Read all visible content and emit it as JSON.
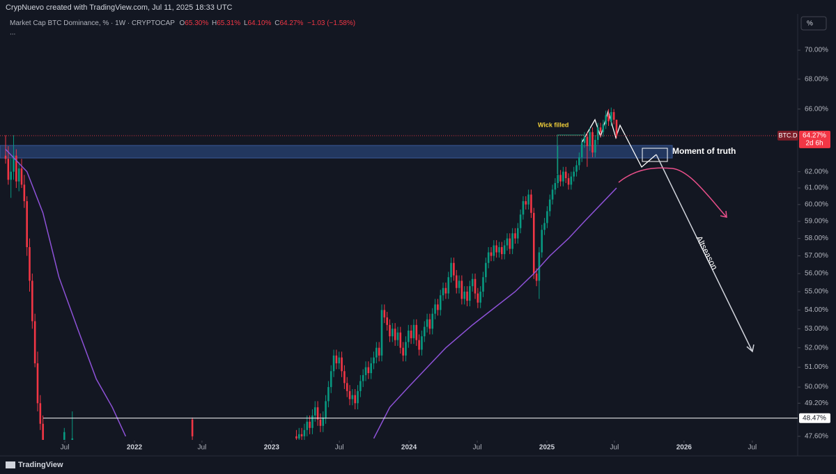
{
  "header": {
    "credit": "CrypNuevo created with TradingView.com, Jul 11, 2025 18:33 UTC",
    "symbol": "Market Cap BTC Dominance, % · 1W · CRYPTOCAP",
    "ohlc": [
      {
        "label": "O",
        "value": "65.30%"
      },
      {
        "label": "H",
        "value": "65.31%"
      },
      {
        "label": "L",
        "value": "64.10%"
      },
      {
        "label": "C",
        "value": "64.27%"
      }
    ],
    "change": "−1.03 (−1.58%)",
    "more": "...",
    "scale_button": "%",
    "logo": "TradingView"
  },
  "chart_data": {
    "type": "candlestick",
    "log": true,
    "grid": false,
    "up_color": "#089981",
    "down_color": "#f23645",
    "ma_color": "#8e52d8",
    "xlim": [
      -2.1,
      296.9
    ],
    "ylim": [
      47.43,
      71.33
    ],
    "xticks": [
      {
        "value": 22.2,
        "label": "Jul"
      },
      {
        "value": 48.3,
        "label": "2022"
      },
      {
        "value": 73.6,
        "label": "Jul"
      },
      {
        "value": 99.7,
        "label": "2023"
      },
      {
        "value": 125.1,
        "label": "Jul"
      },
      {
        "value": 151.2,
        "label": "2024"
      },
      {
        "value": 176.8,
        "label": "Jul"
      },
      {
        "value": 202.9,
        "label": "2025"
      },
      {
        "value": 228.2,
        "label": "Jul"
      },
      {
        "value": 254.3,
        "label": "2026"
      },
      {
        "value": 279.9,
        "label": "Jul"
      }
    ],
    "yticks": [
      {
        "value": 70,
        "label": "70.00%"
      },
      {
        "value": 68,
        "label": "68.00%"
      },
      {
        "value": 66,
        "label": "66.00%"
      },
      {
        "value": 62,
        "label": "62.00%"
      },
      {
        "value": 61,
        "label": "61.00%"
      },
      {
        "value": 60,
        "label": "60.00%"
      },
      {
        "value": 59,
        "label": "59.00%"
      },
      {
        "value": 58,
        "label": "58.00%"
      },
      {
        "value": 57,
        "label": "57.00%"
      },
      {
        "value": 56,
        "label": "56.00%"
      },
      {
        "value": 55,
        "label": "55.00%"
      },
      {
        "value": 54,
        "label": "54.00%"
      },
      {
        "value": 53,
        "label": "53.00%"
      },
      {
        "value": 52,
        "label": "52.00%"
      },
      {
        "value": 51,
        "label": "51.00%"
      },
      {
        "value": 50,
        "label": "50.00%"
      },
      {
        "value": 49.2,
        "label": "49.20%"
      },
      {
        "value": 47.6,
        "label": "47.60%"
      }
    ],
    "candles": [
      [
        63.0,
        64.3,
        62.5,
        62.8
      ],
      [
        62.8,
        63.6,
        61.2,
        61.5
      ],
      [
        61.5,
        62.8,
        60.4,
        62.0
      ],
      [
        62.0,
        64.3,
        61.5,
        63.0
      ],
      [
        63.0,
        63.4,
        61.0,
        61.4
      ],
      [
        61.4,
        62.6,
        60.8,
        62.2
      ],
      [
        62.2,
        62.8,
        61.0,
        61.2
      ],
      [
        61.2,
        61.8,
        59.8,
        60.2
      ],
      [
        60.2,
        60.5,
        57.0,
        57.5
      ],
      [
        57.5,
        58.0,
        55.0,
        55.6
      ],
      [
        55.6,
        56.0,
        53.0,
        53.4
      ],
      [
        53.4,
        53.8,
        51.0,
        51.2
      ],
      [
        51.2,
        51.8,
        48.8,
        49.2
      ],
      [
        49.2,
        49.6,
        47.9,
        48.2
      ],
      [
        48.2,
        48.6,
        47.2,
        47.3
      ],
      null,
      null,
      null,
      null,
      null,
      null,
      null,
      [
        47.3,
        48.0,
        47.2,
        47.8
      ],
      null,
      null,
      [
        47.3,
        48.8,
        47.2,
        47.5
      ],
      null,
      null,
      null,
      null,
      null,
      null,
      null,
      null,
      null,
      null,
      null,
      null,
      null,
      null,
      null,
      null,
      null,
      null,
      null,
      null,
      null,
      null,
      null,
      null,
      null,
      null,
      null,
      null,
      null,
      null,
      null,
      null,
      null,
      null,
      null,
      null,
      null,
      null,
      null,
      null,
      null,
      null,
      null,
      null,
      [
        48.4,
        48.5,
        47.2,
        47.6
      ],
      null,
      null,
      null,
      null,
      null,
      null,
      null,
      null,
      null,
      null,
      null,
      null,
      null,
      null,
      null,
      null,
      null,
      null,
      null,
      null,
      null,
      null,
      null,
      null,
      null,
      null,
      null,
      null,
      null,
      null,
      null,
      null,
      null,
      null,
      null,
      null,
      null,
      null,
      [
        47.6,
        47.9,
        47.2,
        47.5
      ],
      [
        47.5,
        48.0,
        47.2,
        47.7
      ],
      [
        47.7,
        48.0,
        47.3,
        47.6
      ],
      [
        47.6,
        48.2,
        47.3,
        47.9
      ],
      [
        47.9,
        48.6,
        47.6,
        48.3
      ],
      [
        48.3,
        48.6,
        47.7,
        48.0
      ],
      [
        48.0,
        48.9,
        47.7,
        48.6
      ],
      [
        48.6,
        49.3,
        48.3,
        49.0
      ],
      [
        49.0,
        49.3,
        48.1,
        48.4
      ],
      [
        48.4,
        48.7,
        47.8,
        48.1
      ],
      [
        48.1,
        48.8,
        47.8,
        48.5
      ],
      [
        48.5,
        49.6,
        48.2,
        49.3
      ],
      [
        49.3,
        50.3,
        49.0,
        50.0
      ],
      [
        50.0,
        51.1,
        49.7,
        50.8
      ],
      [
        50.8,
        51.9,
        50.5,
        51.6
      ],
      [
        51.6,
        51.9,
        50.9,
        51.2
      ],
      [
        51.2,
        51.8,
        50.9,
        51.5
      ],
      [
        51.5,
        51.8,
        50.5,
        50.8
      ],
      [
        50.8,
        51.1,
        49.9,
        50.2
      ],
      [
        50.2,
        50.5,
        49.5,
        49.8
      ],
      [
        49.8,
        50.1,
        49.1,
        49.4
      ],
      [
        49.4,
        49.9,
        49.1,
        49.6
      ],
      [
        49.6,
        49.9,
        48.9,
        49.2
      ],
      [
        49.2,
        50.1,
        48.9,
        49.8
      ],
      [
        49.8,
        50.6,
        49.5,
        50.3
      ],
      [
        50.3,
        50.9,
        50.0,
        50.6
      ],
      [
        50.6,
        51.3,
        50.3,
        51.0
      ],
      [
        51.0,
        51.3,
        50.4,
        50.7
      ],
      [
        50.7,
        51.5,
        50.4,
        51.2
      ],
      [
        51.2,
        51.8,
        50.9,
        51.5
      ],
      [
        51.5,
        52.3,
        51.2,
        52.0
      ],
      [
        52.0,
        52.3,
        51.3,
        51.6
      ],
      [
        51.6,
        54.3,
        51.3,
        54.0
      ],
      [
        54.0,
        54.3,
        53.3,
        53.6
      ],
      [
        53.6,
        53.9,
        52.9,
        53.2
      ],
      [
        53.2,
        53.5,
        52.3,
        52.6
      ],
      [
        52.6,
        53.3,
        52.3,
        53.0
      ],
      [
        53.0,
        53.3,
        52.1,
        52.4
      ],
      [
        52.4,
        53.1,
        52.1,
        52.8
      ],
      [
        52.8,
        53.1,
        51.7,
        52.0
      ],
      [
        52.0,
        52.3,
        51.3,
        51.6
      ],
      [
        51.6,
        52.6,
        51.3,
        52.3
      ],
      [
        52.3,
        53.2,
        52.0,
        52.9
      ],
      [
        52.9,
        53.2,
        52.2,
        52.5
      ],
      [
        52.5,
        53.5,
        52.2,
        53.2
      ],
      [
        53.2,
        53.5,
        52.1,
        52.4
      ],
      [
        52.4,
        52.7,
        51.6,
        51.9
      ],
      [
        51.9,
        52.9,
        51.6,
        52.6
      ],
      [
        52.6,
        53.4,
        52.3,
        53.1
      ],
      [
        53.1,
        53.8,
        52.8,
        53.5
      ],
      [
        53.5,
        53.8,
        52.7,
        53.0
      ],
      [
        53.0,
        54.1,
        52.7,
        53.8
      ],
      [
        53.8,
        54.6,
        53.5,
        54.3
      ],
      [
        54.3,
        54.6,
        53.7,
        54.0
      ],
      [
        54.0,
        55.1,
        53.7,
        54.8
      ],
      [
        54.8,
        55.5,
        54.5,
        55.2
      ],
      [
        55.2,
        55.5,
        54.6,
        54.9
      ],
      [
        54.9,
        56.1,
        54.6,
        55.8
      ],
      [
        55.8,
        56.9,
        55.5,
        56.6
      ],
      [
        56.6,
        56.9,
        55.6,
        55.9
      ],
      [
        55.9,
        56.2,
        54.9,
        55.2
      ],
      [
        55.2,
        55.9,
        54.9,
        55.6
      ],
      [
        55.6,
        55.9,
        54.3,
        54.6
      ],
      [
        54.6,
        55.3,
        54.3,
        55.0
      ],
      [
        55.0,
        55.3,
        54.2,
        54.5
      ],
      [
        54.5,
        55.6,
        54.2,
        55.3
      ],
      [
        55.3,
        56.0,
        55.0,
        55.7
      ],
      [
        55.7,
        56.0,
        54.6,
        54.9
      ],
      [
        54.9,
        55.2,
        54.1,
        54.4
      ],
      [
        54.4,
        55.3,
        54.1,
        55.0
      ],
      [
        55.0,
        56.1,
        54.7,
        55.8
      ],
      [
        55.8,
        56.9,
        55.5,
        56.6
      ],
      [
        56.6,
        57.5,
        56.3,
        57.2
      ],
      [
        57.2,
        57.5,
        56.7,
        57.0
      ],
      [
        57.0,
        57.9,
        56.7,
        57.6
      ],
      [
        57.6,
        57.9,
        56.9,
        57.2
      ],
      [
        57.2,
        57.8,
        56.9,
        57.5
      ],
      [
        57.5,
        57.8,
        56.8,
        57.1
      ],
      [
        57.1,
        57.9,
        56.8,
        57.6
      ],
      [
        57.6,
        58.3,
        57.3,
        58.0
      ],
      [
        58.0,
        58.3,
        57.1,
        57.4
      ],
      [
        57.4,
        58.6,
        57.1,
        58.3
      ],
      [
        58.3,
        58.6,
        57.7,
        58.0
      ],
      [
        58.0,
        58.9,
        57.7,
        58.6
      ],
      [
        58.6,
        59.7,
        58.3,
        59.4
      ],
      [
        59.4,
        60.5,
        59.1,
        60.2
      ],
      [
        60.2,
        60.5,
        59.7,
        60.0
      ],
      [
        60.0,
        60.9,
        59.7,
        60.6
      ],
      [
        60.6,
        60.9,
        59.2,
        59.5
      ],
      [
        59.5,
        59.8,
        55.7,
        56.0
      ],
      [
        56.0,
        56.3,
        55.3,
        55.6
      ],
      [
        55.6,
        57.5,
        54.6,
        57.2
      ],
      [
        57.2,
        58.8,
        56.9,
        58.5
      ],
      [
        58.5,
        59.2,
        58.2,
        58.9
      ],
      [
        58.9,
        59.9,
        58.6,
        59.6
      ],
      [
        59.6,
        60.6,
        59.3,
        60.3
      ],
      [
        60.3,
        61.2,
        60.0,
        60.9
      ],
      [
        60.9,
        61.6,
        60.6,
        61.3
      ],
      [
        61.3,
        63.6,
        61.0,
        61.8
      ],
      [
        61.8,
        62.1,
        61.1,
        61.4
      ],
      [
        61.4,
        62.3,
        61.1,
        62.0
      ],
      [
        62.0,
        62.3,
        61.3,
        61.6
      ],
      [
        61.6,
        61.9,
        60.9,
        61.2
      ],
      [
        61.2,
        62.0,
        60.9,
        61.7
      ],
      [
        61.7,
        62.3,
        61.4,
        62.0
      ],
      [
        62.0,
        62.7,
        61.7,
        62.4
      ],
      [
        62.4,
        63.2,
        62.1,
        62.9
      ],
      [
        62.9,
        64.1,
        62.6,
        63.8
      ],
      [
        63.8,
        64.5,
        63.5,
        64.2
      ],
      [
        64.2,
        64.5,
        62.3,
        63.6
      ],
      [
        63.6,
        64.8,
        63.3,
        64.5
      ],
      [
        64.5,
        64.8,
        62.9,
        63.2
      ],
      [
        63.2,
        64.3,
        62.9,
        64.0
      ],
      [
        64.0,
        65.1,
        63.7,
        64.8
      ],
      [
        64.8,
        65.1,
        64.2,
        64.5
      ],
      [
        64.5,
        65.3,
        64.2,
        65.0
      ],
      [
        65.0,
        65.9,
        64.7,
        65.6
      ],
      [
        65.6,
        66.0,
        64.9,
        65.2
      ],
      [
        65.2,
        66.1,
        64.9,
        65.8
      ],
      [
        65.8,
        66.0,
        65.0,
        65.3
      ],
      [
        65.3,
        65.31,
        64.1,
        64.27
      ]
    ],
    "ma": {
      "x": [
        0,
        8,
        14,
        20,
        27,
        34,
        40,
        45,
        90,
        138,
        144,
        151,
        165,
        175,
        191,
        198,
        204,
        211,
        217,
        229
      ],
      "values": [
        63.4,
        62.0,
        59.5,
        55.8,
        53.0,
        50.4,
        49.0,
        47.6,
        null,
        47.5,
        49.0,
        50.0,
        52.0,
        53.2,
        55.0,
        56.0,
        57.0,
        58.0,
        59.0,
        61.0
      ]
    },
    "hline": {
      "value": 48.47,
      "label": "48.47%"
    },
    "last_price": {
      "value": 64.27,
      "label": "64.27%",
      "symbol": "BTC.D",
      "countdown": "2d 6h"
    },
    "annotations": [
      "Wick filled",
      "Moment of truth",
      "Altseason"
    ]
  }
}
